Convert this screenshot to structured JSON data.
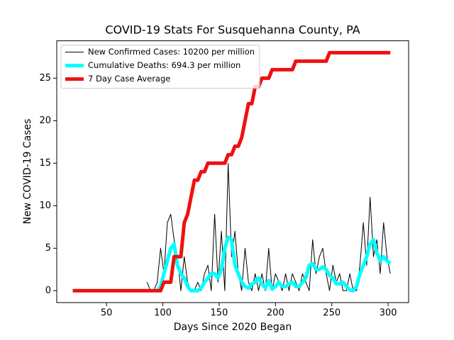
{
  "chart_data": {
    "type": "line",
    "title": "COVID-19 Stats For Susquehanna County, PA",
    "x_label": "Days Since 2020 Began",
    "y_label": "New COVID-19 Cases",
    "x": [
      20,
      23,
      26,
      29,
      32,
      35,
      38,
      41,
      44,
      47,
      50,
      53,
      56,
      59,
      62,
      65,
      68,
      71,
      74,
      77,
      80,
      83,
      86,
      89,
      92,
      95,
      98,
      101,
      104,
      107,
      110,
      113,
      116,
      119,
      122,
      125,
      128,
      131,
      134,
      137,
      140,
      143,
      146,
      149,
      152,
      155,
      158,
      161,
      164,
      167,
      170,
      173,
      176,
      179,
      182,
      185,
      188,
      191,
      194,
      197,
      200,
      203,
      206,
      209,
      212,
      215,
      218,
      221,
      224,
      227,
      230,
      233,
      236,
      239,
      242,
      245,
      248,
      251,
      254,
      257,
      260,
      263,
      266,
      269,
      272,
      275,
      278,
      281,
      284,
      287,
      290,
      293,
      296,
      299,
      302
    ],
    "series": [
      {
        "name": "New Confirmed Cases: 10200 per million",
        "color": "#000000",
        "linewidth": 1,
        "values": [
          null,
          null,
          null,
          null,
          null,
          null,
          null,
          null,
          null,
          null,
          null,
          null,
          null,
          null,
          null,
          null,
          null,
          null,
          null,
          null,
          null,
          null,
          1,
          0,
          0,
          1,
          5,
          2,
          8,
          9,
          6,
          4,
          0,
          4,
          1,
          0,
          0,
          1,
          0,
          2,
          3,
          0,
          9,
          1,
          7,
          0,
          15,
          4,
          7,
          2,
          0,
          5,
          1,
          0,
          2,
          0,
          2,
          0,
          5,
          0,
          2,
          1,
          0,
          2,
          0,
          2,
          1,
          0,
          2,
          1,
          0,
          6,
          2,
          4,
          5,
          2,
          0,
          3,
          1,
          2,
          0,
          0,
          2,
          0,
          0,
          3,
          8,
          3,
          11,
          4,
          6,
          2,
          8,
          4,
          2
        ]
      },
      {
        "name": "Cumulative Deaths: 694.3 per million",
        "color": "#00ffff",
        "linewidth": 5,
        "values": [
          null,
          null,
          null,
          null,
          null,
          null,
          null,
          null,
          null,
          null,
          null,
          null,
          null,
          null,
          null,
          null,
          null,
          null,
          null,
          null,
          null,
          null,
          null,
          null,
          null,
          0,
          0.5,
          2,
          3.5,
          5,
          5.5,
          3,
          2,
          1.5,
          0.5,
          0,
          0,
          0,
          0.3,
          1,
          1.5,
          2,
          2,
          1.5,
          2.5,
          5,
          6.3,
          6,
          3,
          2,
          1,
          0.5,
          0.3,
          0.8,
          1,
          1.5,
          0.8,
          0.3,
          1.2,
          0.2,
          0.5,
          1,
          0.5,
          0.5,
          0.8,
          1,
          0.5,
          0.5,
          1,
          1.5,
          3,
          3.2,
          2.5,
          2.5,
          2.8,
          2.5,
          1.8,
          1.5,
          0.8,
          0.8,
          1,
          0.5,
          0.1,
          0,
          0.5,
          2,
          3,
          4,
          5.5,
          6,
          4.5,
          3.5,
          4,
          3.5,
          3.2
        ]
      },
      {
        "name": "7 Day Case Average",
        "color": "#ee1111",
        "linewidth": 5,
        "values": [
          0,
          0,
          0,
          0,
          0,
          0,
          0,
          0,
          0,
          0,
          0,
          0,
          0,
          0,
          0,
          0,
          0,
          0,
          0,
          0,
          0,
          0,
          0,
          0,
          0,
          0,
          0,
          1,
          1,
          1,
          4,
          4,
          4,
          8,
          9,
          11,
          13,
          13,
          14,
          14,
          15,
          15,
          15,
          15,
          15,
          15,
          16,
          16,
          17,
          17,
          18,
          20,
          22,
          22,
          24,
          24,
          25,
          25,
          25,
          26,
          26,
          26,
          26,
          26,
          26,
          26,
          27,
          27,
          27,
          27,
          27,
          27,
          27,
          27,
          27,
          27,
          28,
          28,
          28,
          28,
          28,
          28,
          28,
          28,
          28,
          28,
          28,
          28,
          28,
          28,
          28,
          28,
          28,
          28,
          28
        ]
      }
    ],
    "xlim": [
      5.8,
      318.2
    ],
    "xticks": [
      50,
      100,
      150,
      200,
      250,
      300
    ],
    "ylim": [
      -1.4,
      29.4
    ],
    "yticks": [
      0,
      5,
      10,
      15,
      20,
      25
    ],
    "legend": "upper left",
    "grid": false
  }
}
